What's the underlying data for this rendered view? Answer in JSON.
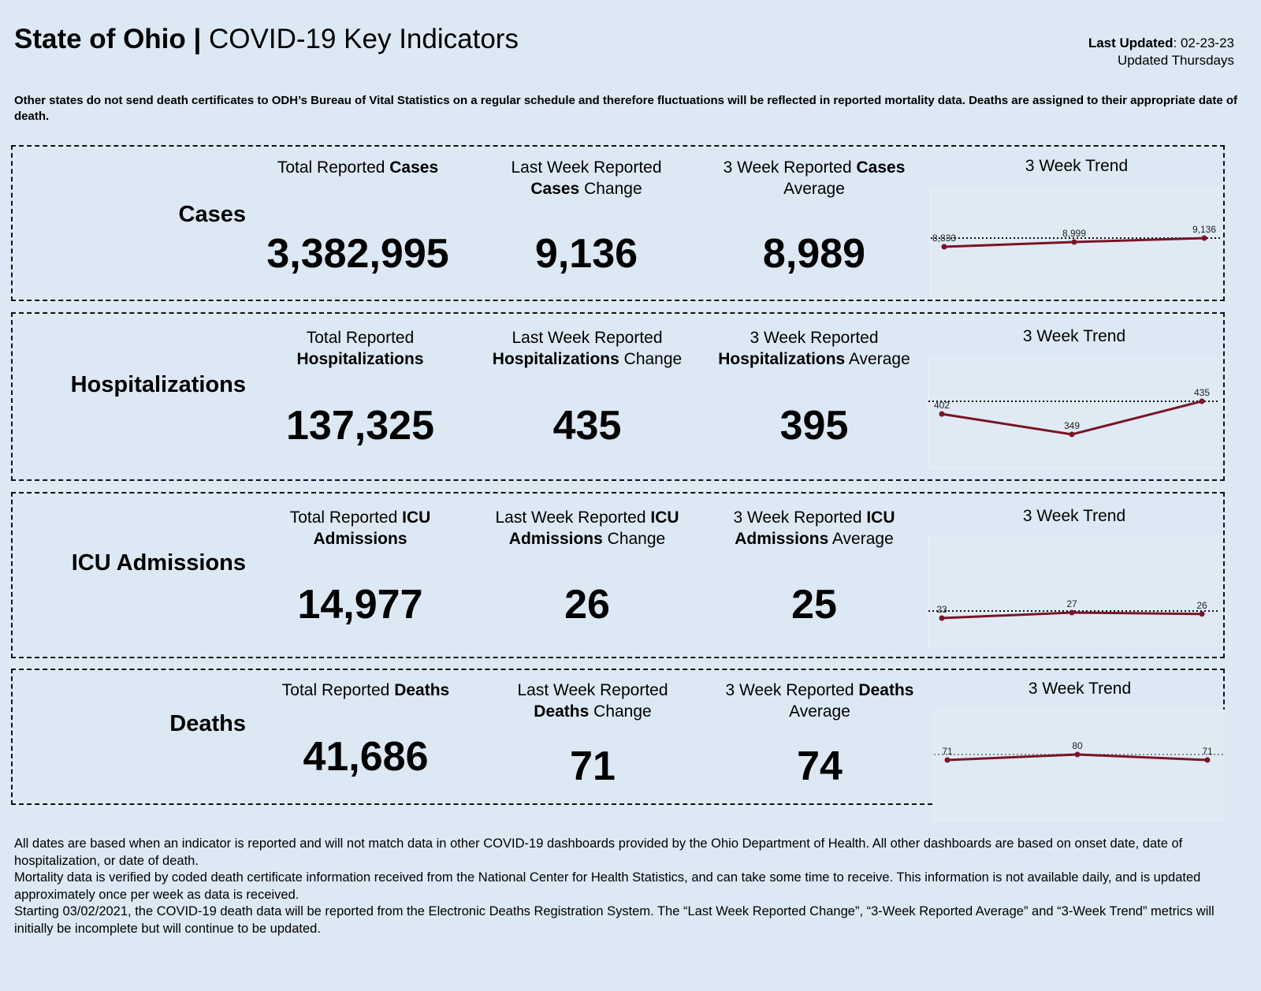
{
  "header": {
    "title_bold": "State of Ohio |",
    "title_rest": " COVID-19 Key Indicators",
    "last_updated_label": "Last Updated",
    "last_updated_value": ": 02-23-23",
    "update_schedule": "Updated Thursdays"
  },
  "note": "Other states do not send death certificates to ODH’s Bureau of Vital Statistics on a regular schedule and therefore fluctuations will be reflected in reported mortality data. Deaths are assigned to their appropriate date of death.",
  "colors": {
    "background": "#dce8f3",
    "trend_line": "#7a1426"
  },
  "panels": [
    {
      "label": "Cases",
      "metrics": [
        {
          "title": [
            {
              "t": "Total Reported "
            },
            {
              "t": "Cases",
              "b": true
            }
          ],
          "value": "3,382,995"
        },
        {
          "title": [
            {
              "t": "Last Week Reported"
            },
            {
              "br": true
            },
            {
              "t": "Cases",
              "b": true
            },
            {
              "t": " Change"
            }
          ],
          "value": "9,136"
        },
        {
          "title": [
            {
              "t": "3 Week Reported "
            },
            {
              "t": "Cases",
              "b": true
            },
            {
              "br": true
            },
            {
              "t": "Average"
            }
          ],
          "value": "8,989"
        }
      ],
      "trend": {
        "title": "3 Week Trend",
        "values": [
          8833,
          8999,
          9136
        ],
        "labels": [
          "8,833",
          "8,999",
          "9,136"
        ]
      }
    },
    {
      "label": "Hospitalizations",
      "metrics": [
        {
          "title": [
            {
              "t": "Total Reported"
            },
            {
              "br": true
            },
            {
              "t": "Hospitalizations",
              "b": true
            }
          ],
          "value": "137,325"
        },
        {
          "title": [
            {
              "t": "Last Week Reported"
            },
            {
              "br": true
            },
            {
              "t": "Hospitalizations",
              "b": true
            },
            {
              "t": " Change"
            }
          ],
          "value": "435"
        },
        {
          "title": [
            {
              "t": "3 Week Reported"
            },
            {
              "br": true
            },
            {
              "t": "Hospitalizations",
              "b": true
            },
            {
              "t": " Average"
            }
          ],
          "value": "395"
        }
      ],
      "trend": {
        "title": "3 Week Trend",
        "values": [
          402,
          349,
          435
        ],
        "labels": [
          "402",
          "349",
          "435"
        ]
      }
    },
    {
      "label": "ICU Admissions",
      "metrics": [
        {
          "title": [
            {
              "t": "Total Reported "
            },
            {
              "t": "ICU",
              "b": true
            },
            {
              "br": true
            },
            {
              "t": "Admissions",
              "b": true
            }
          ],
          "value": "14,977"
        },
        {
          "title": [
            {
              "t": "Last Week Reported "
            },
            {
              "t": "ICU",
              "b": true
            },
            {
              "br": true
            },
            {
              "t": "Admissions",
              "b": true
            },
            {
              "t": " Change"
            }
          ],
          "value": "26"
        },
        {
          "title": [
            {
              "t": "3 Week Reported "
            },
            {
              "t": "ICU",
              "b": true
            },
            {
              "br": true
            },
            {
              "t": "Admissions",
              "b": true
            },
            {
              "t": " Average"
            }
          ],
          "value": "25"
        }
      ],
      "trend": {
        "title": "3 Week Trend",
        "values": [
          23,
          27,
          26
        ],
        "labels": [
          "23",
          "27",
          "26"
        ]
      }
    },
    {
      "label": "Deaths",
      "metrics": [
        {
          "title": [
            {
              "t": "Total Reported "
            },
            {
              "t": "Deaths",
              "b": true
            }
          ],
          "value": "41,686"
        },
        {
          "title": [
            {
              "t": "Last Week Reported"
            },
            {
              "br": true
            },
            {
              "t": "Deaths",
              "b": true
            },
            {
              "t": " Change"
            }
          ],
          "value": "71"
        },
        {
          "title": [
            {
              "t": "3 Week Reported "
            },
            {
              "t": "Deaths",
              "b": true
            },
            {
              "br": true
            },
            {
              "t": "Average"
            }
          ],
          "value": "74"
        }
      ],
      "trend": {
        "title": "3 Week Trend",
        "values": [
          71,
          80,
          71
        ],
        "labels": [
          "71",
          "80",
          "71"
        ]
      }
    }
  ],
  "footer": [
    "All dates are based when an indicator is reported and will not match data in other COVID-19 dashboards provided by the Ohio Department of Health. All other dashboards are based on onset date, date of hospitalization, or date of death.",
    "Mortality data is verified by coded death certificate information received from the National Center for Health Statistics, and can take some time to receive. This information is not available daily, and is updated approximately once per week as data is received.",
    "Starting 03/02/2021, the COVID-19 death data will be reported from the Electronic Deaths Registration System. The “Last Week Reported Change”, “3-Week Reported Average” and “3-Week Trend” metrics will initially be incomplete but will continue to be updated."
  ]
}
